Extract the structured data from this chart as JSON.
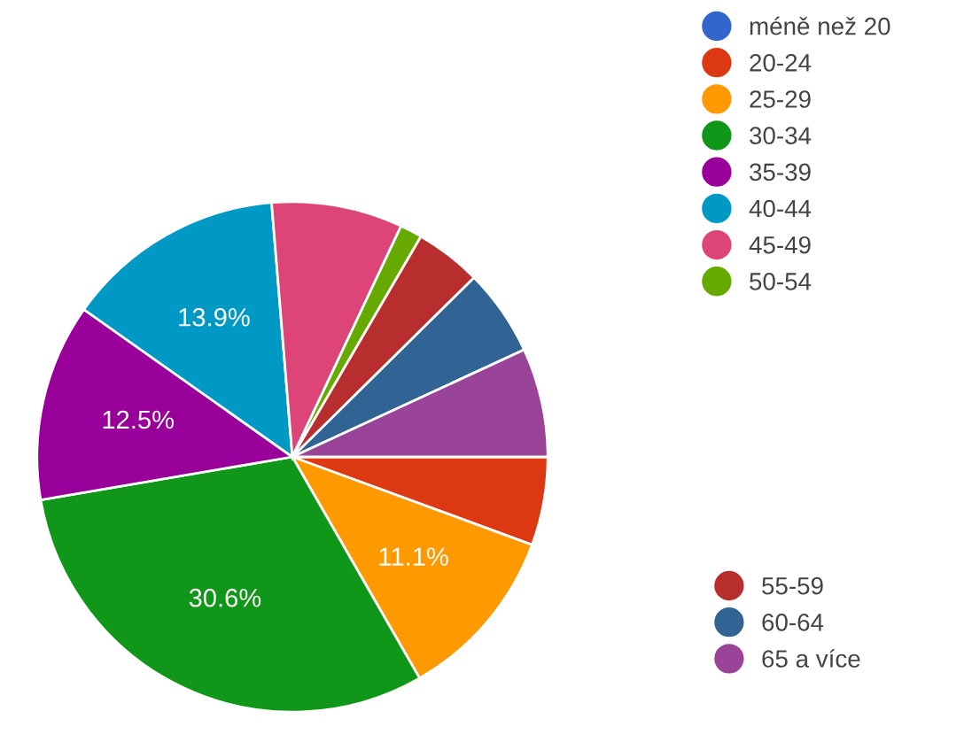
{
  "chart_data": {
    "type": "pie",
    "categories": [
      "méně než 20",
      "20-24",
      "25-29",
      "30-34",
      "35-39",
      "40-44",
      "45-49",
      "50-54",
      "55-59",
      "60-64",
      "65 a více"
    ],
    "values": [
      0,
      5.6,
      11.1,
      30.6,
      12.5,
      13.9,
      8.3,
      1.4,
      4.2,
      5.5,
      6.9
    ],
    "colors": [
      "#3366cc",
      "#dc3912",
      "#ff9900",
      "#109618",
      "#990099",
      "#0099c6",
      "#dd4477",
      "#66aa00",
      "#b82e2e",
      "#316395",
      "#994499"
    ],
    "value_labels": [
      null,
      null,
      "11.1%",
      "30.6%",
      "12.5%",
      "13.9%",
      null,
      null,
      null,
      null,
      null
    ],
    "legend": "right"
  }
}
